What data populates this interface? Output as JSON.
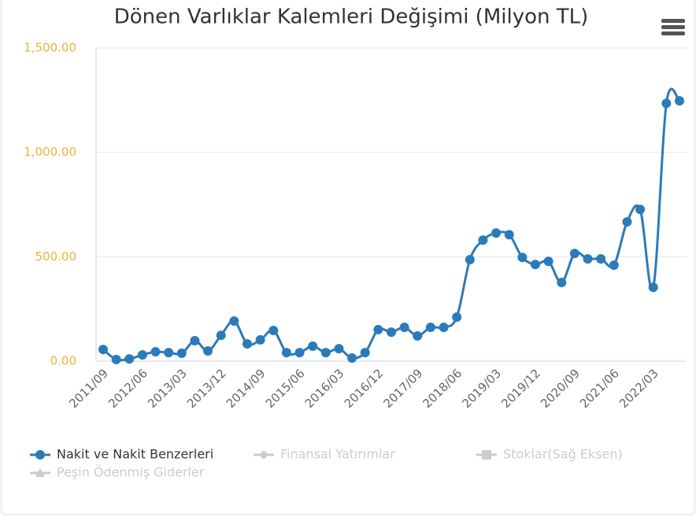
{
  "chart_data": {
    "type": "line",
    "title": "Dönen Varlıklar Kalemleri Değişimi (Milyon TL)",
    "categories": [
      "2011/09",
      null,
      null,
      "2012/06",
      null,
      null,
      "2013/03",
      null,
      null,
      "2013/12",
      null,
      null,
      "2014/09",
      null,
      null,
      "2015/06",
      null,
      null,
      "2016/03",
      null,
      null,
      "2016/12",
      null,
      null,
      "2017/09",
      null,
      null,
      "2018/06",
      null,
      null,
      "2019/03",
      null,
      null,
      "2019/12",
      null,
      null,
      "2020/09",
      null,
      null,
      "2021/06",
      null,
      null,
      "2022/03",
      null,
      null
    ],
    "series": [
      {
        "name": "Nakit ve Nakit Benzerleri",
        "color": "#2b7bba",
        "marker": "circle",
        "visible": true,
        "values": [
          56,
          8,
          11,
          30,
          45,
          41,
          38,
          98,
          49,
          124,
          192,
          83,
          102,
          147,
          41,
          41,
          72,
          41,
          60,
          15,
          41,
          151,
          139,
          162,
          121,
          162,
          162,
          211,
          486,
          580,
          614,
          606,
          497,
          463,
          478,
          377,
          516,
          490,
          490,
          460,
          667,
          727,
          354,
          1235,
          1247
        ]
      },
      {
        "name": "Finansal Yatırımlar",
        "marker": "diamond",
        "visible": false
      },
      {
        "name": "Stoklar(Sağ Eksen)",
        "marker": "square",
        "visible": false
      },
      {
        "name": "Peşin Ödenmiş Giderler",
        "marker": "triangle",
        "visible": false
      }
    ],
    "ylim": [
      0,
      1500
    ],
    "yticks": [
      {
        "value": 0,
        "label": "0.00"
      },
      {
        "value": 500,
        "label": "500.00"
      },
      {
        "value": 1000,
        "label": "1,000.00"
      },
      {
        "value": 1500,
        "label": "1,500.00"
      }
    ],
    "grid": true
  }
}
